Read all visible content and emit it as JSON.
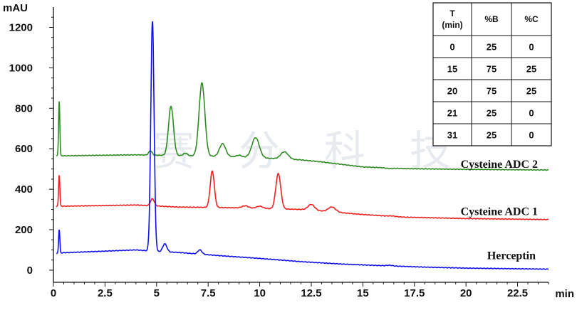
{
  "chart_data": {
    "type": "line",
    "y_unit": "mAU",
    "x_unit": "min",
    "xlim": [
      0,
      24
    ],
    "ylim": [
      -60,
      1300
    ],
    "x_ticks": [
      0,
      2.5,
      5,
      7.5,
      10,
      12.5,
      15,
      17.5,
      20,
      22.5
    ],
    "x_tick_labels": [
      "0",
      "2.5",
      "5",
      "7.5",
      "10",
      "12.5",
      "15",
      "17.5",
      "20",
      "22.5"
    ],
    "y_ticks": [
      0,
      200,
      400,
      600,
      800,
      1000,
      1200
    ],
    "y_tick_labels": [
      "0",
      "200",
      "400",
      "600",
      "800",
      "1000",
      "1200"
    ],
    "grid": false,
    "series": [
      {
        "name": "Cysteine ADC 2",
        "color": "#2e8b22",
        "baseline": [
          [
            0.15,
            565
          ],
          [
            0.2,
            566
          ],
          [
            0.45,
            565
          ],
          [
            4,
            570
          ],
          [
            6,
            566
          ],
          [
            9,
            560
          ],
          [
            12,
            545
          ],
          [
            13,
            535
          ],
          [
            15,
            510
          ],
          [
            17,
            502
          ],
          [
            20,
            498
          ],
          [
            24,
            495
          ]
        ],
        "peaks": [
          {
            "t": 0.28,
            "h": 835,
            "w": 0.03
          },
          {
            "t": 4.7,
            "h": 590,
            "w": 0.08
          },
          {
            "t": 5.7,
            "h": 810,
            "w": 0.12
          },
          {
            "t": 6.4,
            "h": 578,
            "w": 0.1
          },
          {
            "t": 7.2,
            "h": 925,
            "w": 0.14
          },
          {
            "t": 8.2,
            "h": 625,
            "w": 0.15
          },
          {
            "t": 9.0,
            "h": 568,
            "w": 0.12
          },
          {
            "t": 9.8,
            "h": 655,
            "w": 0.18
          },
          {
            "t": 11.2,
            "h": 585,
            "w": 0.18
          },
          {
            "t": 16.3,
            "h": 502,
            "w": 0.15
          }
        ]
      },
      {
        "name": "Cysteine ADC 1",
        "color": "#f02020",
        "baseline": [
          [
            0.15,
            312
          ],
          [
            0.2,
            318
          ],
          [
            0.45,
            316
          ],
          [
            4,
            322
          ],
          [
            6,
            312
          ],
          [
            9,
            308
          ],
          [
            12,
            300
          ],
          [
            13,
            292
          ],
          [
            15,
            275
          ],
          [
            17,
            262
          ],
          [
            20,
            255
          ],
          [
            24,
            250
          ]
        ],
        "peaks": [
          {
            "t": 0.28,
            "h": 470,
            "w": 0.03
          },
          {
            "t": 4.8,
            "h": 353,
            "w": 0.09
          },
          {
            "t": 7.7,
            "h": 490,
            "w": 0.1
          },
          {
            "t": 9.3,
            "h": 318,
            "w": 0.15
          },
          {
            "t": 10.0,
            "h": 316,
            "w": 0.15
          },
          {
            "t": 10.9,
            "h": 477,
            "w": 0.12
          },
          {
            "t": 12.5,
            "h": 325,
            "w": 0.16
          },
          {
            "t": 13.5,
            "h": 312,
            "w": 0.18
          },
          {
            "t": 16.4,
            "h": 268,
            "w": 0.15
          }
        ]
      },
      {
        "name": "Herceptin",
        "color": "#1010f0",
        "baseline": [
          [
            0.15,
            80
          ],
          [
            0.2,
            84
          ],
          [
            0.45,
            86
          ],
          [
            2,
            92
          ],
          [
            4,
            100
          ],
          [
            5,
            92
          ],
          [
            6,
            88
          ],
          [
            8,
            72
          ],
          [
            10,
            58
          ],
          [
            12,
            42
          ],
          [
            14,
            30
          ],
          [
            16,
            22
          ],
          [
            18,
            15
          ],
          [
            20,
            10
          ],
          [
            24,
            5
          ]
        ],
        "peaks": [
          {
            "t": 0.28,
            "h": 200,
            "w": 0.03
          },
          {
            "t": 4.8,
            "h": 1230,
            "w": 0.08
          },
          {
            "t": 5.4,
            "h": 130,
            "w": 0.1
          },
          {
            "t": 7.1,
            "h": 100,
            "w": 0.1
          },
          {
            "t": 16.3,
            "h": 24,
            "w": 0.15
          }
        ]
      }
    ],
    "series_label_positions_y": [
      505,
      272,
      55
    ],
    "gradient_table": {
      "headers": [
        "T\n(min)",
        "%B",
        "%C"
      ],
      "rows": [
        [
          "0",
          "25",
          "0"
        ],
        [
          "15",
          "75",
          "25"
        ],
        [
          "20",
          "75",
          "25"
        ],
        [
          "21",
          "25",
          "0"
        ],
        [
          "31",
          "25",
          "0"
        ]
      ]
    },
    "watermark": "赛分科技"
  }
}
